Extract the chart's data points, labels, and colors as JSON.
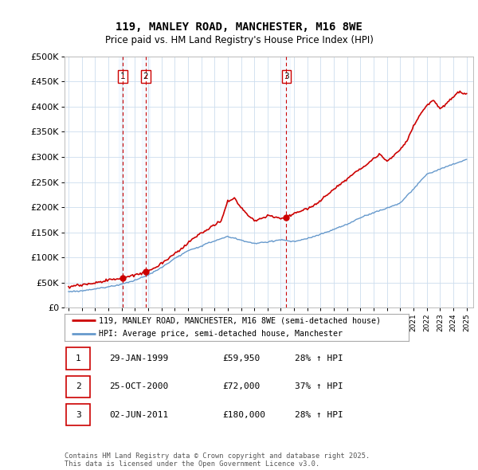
{
  "title": "119, MANLEY ROAD, MANCHESTER, M16 8WE",
  "subtitle": "Price paid vs. HM Land Registry's House Price Index (HPI)",
  "ylim": [
    0,
    500000
  ],
  "yticks": [
    0,
    50000,
    100000,
    150000,
    200000,
    250000,
    300000,
    350000,
    400000,
    450000,
    500000
  ],
  "ytick_labels": [
    "£0",
    "£50K",
    "£100K",
    "£150K",
    "£200K",
    "£250K",
    "£300K",
    "£350K",
    "£400K",
    "£450K",
    "£500K"
  ],
  "sale_dates": [
    1999.08,
    2000.82,
    2011.42
  ],
  "sale_prices": [
    59950,
    72000,
    180000
  ],
  "sale_labels": [
    "1",
    "2",
    "3"
  ],
  "red_line_color": "#cc0000",
  "blue_line_color": "#6699cc",
  "vline_color": "#cc0000",
  "vline_fill_color": "#ddeeff",
  "legend_red_label": "119, MANLEY ROAD, MANCHESTER, M16 8WE (semi-detached house)",
  "legend_blue_label": "HPI: Average price, semi-detached house, Manchester",
  "table_rows": [
    [
      "1",
      "29-JAN-1999",
      "£59,950",
      "28% ↑ HPI"
    ],
    [
      "2",
      "25-OCT-2000",
      "£72,000",
      "37% ↑ HPI"
    ],
    [
      "3",
      "02-JUN-2011",
      "£180,000",
      "28% ↑ HPI"
    ]
  ],
  "footer": "Contains HM Land Registry data © Crown copyright and database right 2025.\nThis data is licensed under the Open Government Licence v3.0.",
  "background_color": "#ffffff",
  "grid_color": "#ccddee"
}
